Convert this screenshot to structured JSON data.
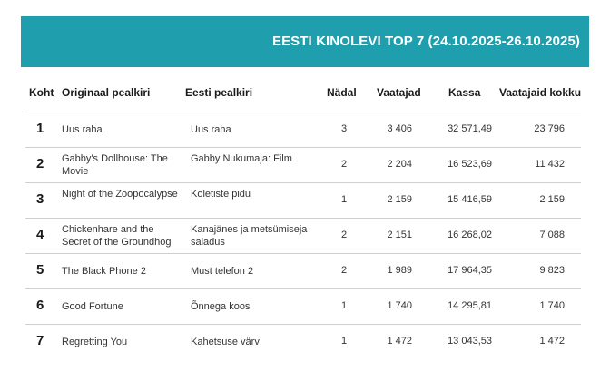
{
  "title": "EESTI KINOLEVI TOP 7 (24.10.2025-26.10.2025)",
  "headers": {
    "rank": "Koht",
    "original": "Originaal pealkiri",
    "estonian": "Eesti pealkiri",
    "weeks": "Nädal",
    "viewers": "Vaatajad",
    "gross": "Kassa",
    "total": "Vaatajaid kokku"
  },
  "rows": [
    {
      "rank": "1",
      "original": "Uus raha",
      "estonian": "Uus raha",
      "weeks": "3",
      "viewers": "3 406",
      "gross": "32 571,49",
      "total": "23 796"
    },
    {
      "rank": "2",
      "original": "Gabby's Dollhouse: The Movie",
      "estonian": "Gabby Nukumaja: Film",
      "weeks": "2",
      "viewers": "2 204",
      "gross": "16 523,69",
      "total": "11 432"
    },
    {
      "rank": "3",
      "original": "Night of the Zoopocalypse",
      "estonian": "Koletiste pidu",
      "weeks": "1",
      "viewers": "2 159",
      "gross": "15 416,59",
      "total": "2 159"
    },
    {
      "rank": "4",
      "original": "Chickenhare and the Secret of the Groundhog",
      "estonian": "Kanajänes ja metsümiseja saladus",
      "weeks": "2",
      "viewers": "2 151",
      "gross": "16 268,02",
      "total": "7 088"
    },
    {
      "rank": "5",
      "original": "The Black Phone 2",
      "estonian": "Must telefon 2",
      "weeks": "2",
      "viewers": "1 989",
      "gross": "17 964,35",
      "total": "9 823"
    },
    {
      "rank": "6",
      "original": "Good Fortune",
      "estonian": "Õnnega koos",
      "weeks": "1",
      "viewers": "1 740",
      "gross": "14 295,81",
      "total": "1 740"
    },
    {
      "rank": "7",
      "original": "Regretting You",
      "estonian": "Kahetsuse värv",
      "weeks": "1",
      "viewers": "1 472",
      "gross": "13 043,53",
      "total": "1 472"
    }
  ]
}
